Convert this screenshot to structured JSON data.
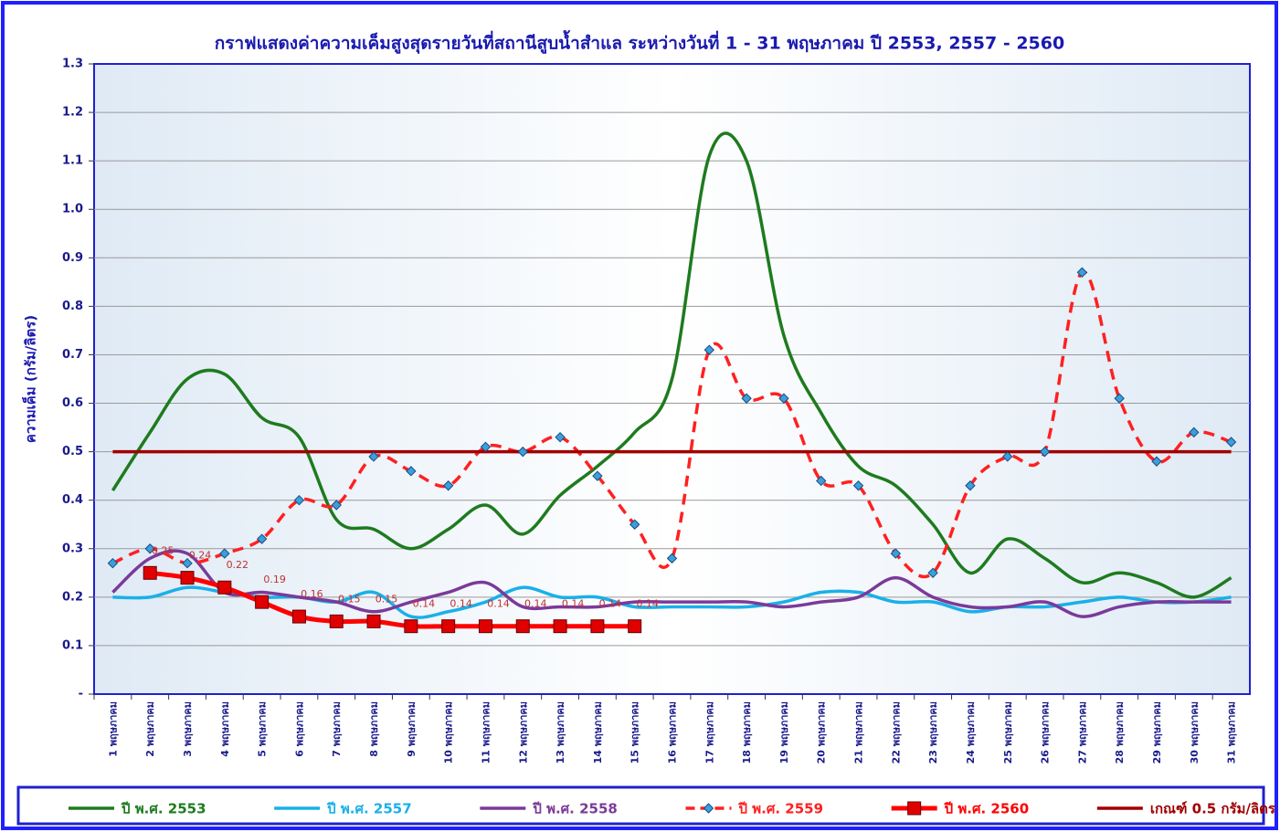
{
  "chart_data": {
    "type": "line",
    "title": "กราฟแสดงค่าความเค็มสูงสุดรายวันที่สถานีสูบน้ำสำแล ระหว่างวันที่ 1 - 31 พฤษภาคม ปี 2553, 2557 - 2560",
    "y_label": "ความเค็ม (กรัม/ลิตร)",
    "categories": [
      "1 พฤษภาคม",
      "2 พฤษภาคม",
      "3 พฤษภาคม",
      "4 พฤษภาคม",
      "5 พฤษภาคม",
      "6 พฤษภาคม",
      "7 พฤษภาคม",
      "8 พฤษภาคม",
      "9 พฤษภาคม",
      "10 พฤษภาคม",
      "11 พฤษภาคม",
      "12 พฤษภาคม",
      "13 พฤษภาคม",
      "14 พฤษภาคม",
      "15 พฤษภาคม",
      "16 พฤษภาคม",
      "17 พฤษภาคม",
      "18 พฤษภาคม",
      "19 พฤษภาคม",
      "20 พฤษภาคม",
      "21 พฤษภาคม",
      "22 พฤษภาคม",
      "23 พฤษภาคม",
      "24 พฤษภาคม",
      "25 พฤษภาคม",
      "26 พฤษภาคม",
      "27 พฤษภาคม",
      "28 พฤษภาคม",
      "29 พฤษภาคม",
      "30 พฤษภาคม",
      "31 พฤษภาคม"
    ],
    "ylim": [
      0,
      1.3
    ],
    "yticks": [
      {
        "value": 0,
        "label": "-"
      },
      0.1,
      0.2,
      0.3,
      0.4,
      0.5,
      0.6,
      0.7,
      0.8,
      0.9,
      {
        "value": 1,
        "label": "1.0"
      },
      1.1,
      1.2,
      1.3
    ],
    "grid": true,
    "legend": "bottom",
    "series": [
      {
        "name": "ปี พ.ศ. 2553",
        "color": "#1e7b1e",
        "smooth": true,
        "values": [
          0.42,
          0.54,
          0.65,
          0.66,
          0.57,
          0.53,
          0.36,
          0.34,
          0.3,
          0.34,
          0.39,
          0.33,
          0.41,
          0.47,
          0.54,
          0.65,
          1.11,
          1.1,
          0.74,
          0.58,
          0.47,
          0.43,
          0.35,
          0.25,
          0.32,
          0.28,
          0.23,
          0.25,
          0.23,
          0.2,
          0.24
        ]
      },
      {
        "name": "ปี พ.ศ. 2557",
        "color": "#1ab0e8",
        "smooth": true,
        "values": [
          0.2,
          0.2,
          0.22,
          0.21,
          0.2,
          0.2,
          0.19,
          0.21,
          0.16,
          0.17,
          0.19,
          0.22,
          0.2,
          0.2,
          0.18,
          0.18,
          0.18,
          0.18,
          0.19,
          0.21,
          0.21,
          0.19,
          0.19,
          0.17,
          0.18,
          0.18,
          0.19,
          0.2,
          0.19,
          0.19,
          0.2
        ]
      },
      {
        "name": "ปี พ.ศ. 2558",
        "color": "#7b3a9a",
        "smooth": true,
        "values": [
          0.21,
          0.28,
          0.29,
          0.21,
          0.21,
          0.2,
          0.19,
          0.17,
          0.19,
          0.21,
          0.23,
          0.18,
          0.18,
          0.18,
          0.19,
          0.19,
          0.19,
          0.19,
          0.18,
          0.19,
          0.2,
          0.24,
          0.2,
          0.18,
          0.18,
          0.19,
          0.16,
          0.18,
          0.19,
          0.19,
          0.19
        ]
      },
      {
        "name": "ปี พ.ศ. 2559",
        "color": "#ff2020",
        "smooth": true,
        "line_style": "dashed",
        "marker": "diamond",
        "marker_color": "#3aa0d8",
        "values": [
          0.27,
          0.3,
          0.27,
          0.29,
          0.32,
          0.4,
          0.39,
          0.49,
          0.46,
          0.43,
          0.51,
          0.5,
          0.53,
          0.45,
          0.35,
          0.28,
          0.71,
          0.61,
          0.61,
          0.44,
          0.43,
          0.29,
          0.25,
          0.43,
          0.49,
          0.5,
          0.87,
          0.61,
          0.48,
          0.54,
          0.52
        ]
      },
      {
        "name": "ปี พ.ศ. 2560",
        "color": "#ff0000",
        "smooth": true,
        "marker": "square",
        "marker_color": "#e00000",
        "data_labels": true,
        "values": [
          null,
          0.25,
          0.24,
          0.22,
          0.19,
          0.16,
          0.15,
          0.15,
          0.14,
          0.14,
          0.14,
          0.14,
          0.14,
          0.14,
          0.14,
          null,
          null,
          null,
          null,
          null,
          null,
          null,
          null,
          null,
          null,
          null,
          null,
          null,
          null,
          null,
          null
        ]
      },
      {
        "name": "เกณฑ์ 0.5 กรัม/ลิตร",
        "color": "#a00000",
        "smooth": false,
        "values": [
          0.5,
          0.5,
          0.5,
          0.5,
          0.5,
          0.5,
          0.5,
          0.5,
          0.5,
          0.5,
          0.5,
          0.5,
          0.5,
          0.5,
          0.5,
          0.5,
          0.5,
          0.5,
          0.5,
          0.5,
          0.5,
          0.5,
          0.5,
          0.5,
          0.5,
          0.5,
          0.5,
          0.5,
          0.5,
          0.5,
          0.5
        ]
      }
    ]
  }
}
